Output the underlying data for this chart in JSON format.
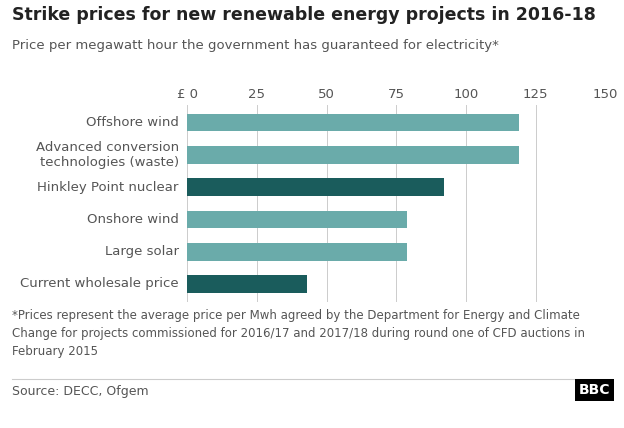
{
  "title": "Strike prices for new renewable energy projects in 2016-18",
  "subtitle": "Price per megawatt hour the government has guaranteed for electricity*",
  "categories": [
    "Current wholesale price",
    "Large solar",
    "Onshore wind",
    "Hinkley Point nuclear",
    "Advanced conversion\ntechnologies (waste)",
    "Offshore wind"
  ],
  "values": [
    43,
    79,
    79,
    92,
    119,
    119
  ],
  "colors": [
    "#1a5c5c",
    "#6aabaa",
    "#6aabaa",
    "#1a5c5c",
    "#6aabaa",
    "#6aabaa"
  ],
  "xlim": [
    0,
    150
  ],
  "xticks": [
    0,
    25,
    50,
    75,
    100,
    125,
    150
  ],
  "tick_labels": [
    "£ 0",
    "25",
    "50",
    "75",
    "100",
    "125",
    "150"
  ],
  "footnote": "*Prices represent the average price per Mwh agreed by the Department for Energy and Climate\nChange for projects commissioned for 2016/17 and 2017/18 during round one of CFD auctions in\nFebruary 2015",
  "source": "Source: DECC, Ofgem",
  "bbc_label": "BBC",
  "background_color": "#ffffff",
  "bar_height": 0.55,
  "title_fontsize": 12.5,
  "subtitle_fontsize": 9.5,
  "tick_fontsize": 9.5,
  "footnote_fontsize": 8.5,
  "source_fontsize": 9
}
